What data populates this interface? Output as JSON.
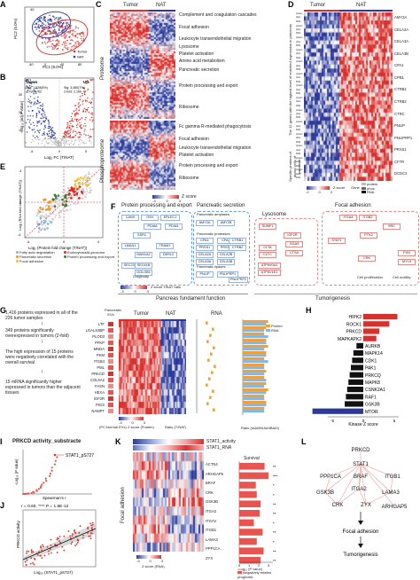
{
  "panels": {
    "A": {
      "label": "A",
      "xlabel": "PC1 (9.0%)",
      "ylabel": "PC2 (5.0%)",
      "legend": [
        "Tumor",
        "NAT"
      ],
      "xticks": [
        "-40",
        "0",
        "40",
        "80"
      ],
      "yticks": [
        "40",
        "0",
        "-40"
      ]
    },
    "B": {
      "label": "B",
      "xlabel": "Log₂ FC (T/NAT)",
      "ylabel": "-Log₁₀ (adj.P value)",
      "down_title": "Down",
      "up_title": "Up",
      "down_stats": [
        "Sig: 1,528(8%)",
        "2-fold: 762"
      ],
      "up_stats": [
        "Sig: 3,450(7%)",
        "2-fold: 2,160"
      ],
      "xticks": [
        "-5",
        "0",
        "5"
      ],
      "yticks": [
        "40",
        "30",
        "20",
        "10",
        "0"
      ]
    },
    "C": {
      "label": "C",
      "tumor": "Tumor",
      "nat": "NAT",
      "proteome": "Proteome",
      "phospho": "Phosphoproteome",
      "terms_top": [
        "Complement and coagulation cascades",
        "Focal adhesion",
        "Leukocyte transendothelial migration",
        "Lysosome",
        "Platelet activation",
        "Amino acid metabolism",
        "Pancreatic secretion",
        "Protein processing and export",
        "Ribosome"
      ],
      "terms_bottom": [
        "Fc gamma R-mediated phagocytosis",
        "Focal adhesion",
        "Leukocyte transendothelial migration",
        "Platelet activation",
        "Protein processing and export",
        "Ribosome"
      ],
      "zscore": "Z score",
      "zticks": [
        "-3",
        "0",
        "3"
      ]
    },
    "D": {
      "label": "D",
      "tumor": "Tumor",
      "nat": "NAT",
      "genes": [
        "AMY2A",
        "CELA2A",
        "CELA3A",
        "CELA3B",
        "CPA1",
        "CPB1",
        "CTRB1",
        "CTRB2",
        "CTRC",
        "PNLIP",
        "PNLIPRP1",
        "PRSS1",
        "CFTR",
        "DCDC2"
      ],
      "side1": "The 12 genes with the highest level of enriched expression in pancreas",
      "side2": "Specific proteins of ductal cells of pancreas",
      "rowtags": [
        "protein",
        "phos",
        "RNA"
      ],
      "zscore": "Z score",
      "zticks": [
        "-2",
        "0",
        "2"
      ],
      "gene_legend": "Gene",
      "gene_items": [
        "protein",
        "phos",
        "RNA"
      ]
    },
    "E": {
      "label": "E",
      "xlabel": "Log₂ (Protein fold change (T/NAT))",
      "ylabel": "Log₂ (RNA fold change (T/NAT))",
      "legend": [
        "Fatty acid degradation",
        "Endocytosis&Lysosome",
        "Pancreatic secretion",
        "Protein processing and export",
        "Focal adhesion"
      ],
      "legend_colors": [
        "#7fb7e8",
        "#e2281f",
        "#ff8c1a",
        "#3a7d3a",
        "#f5c318"
      ],
      "xticks": [
        "-4",
        "0",
        "4"
      ],
      "yticks": [
        "4",
        "0",
        "-4"
      ]
    },
    "F": {
      "label": "F",
      "title_ppe": "Protein processing and export",
      "title_ps": "Pancreatic secretion",
      "title_lys": "Lysosome",
      "title_fa": "Focal adhesion",
      "ppe_genes": [
        "CANX",
        "OS9",
        "ERLEC1",
        "PDIA6",
        "PDIA4",
        "SSR1",
        "LMAN1",
        "TRAM1",
        "MAN1A2",
        "DERL2",
        "SEC23B",
        "SEC61B",
        "GOLGB1"
      ],
      "ps_sub": [
        "Pancreatic amylases",
        "Pancreatic proteases",
        "Pancreatic lipases"
      ],
      "ps_genes": [
        "AMY2A",
        "AMY2B",
        "CPA1",
        "CPA2",
        "PRSS1",
        "PRSS2",
        "CELA2A",
        "CELA2B",
        "CELA3A",
        "CELA3B",
        "CTRB1",
        "CTRB2",
        "PNLIP",
        "PNLIPRP1",
        "PNLIPRP2"
      ],
      "lys_genes": [
        "SUMF1",
        "IGF2R",
        "CLTA",
        "CLTC",
        "GGA3",
        "CTSA",
        "ATP6V0A1",
        "ATP6V1E1"
      ],
      "fa_genes": [
        "ITGA4",
        "ITGB2",
        "SRC",
        "PTK2",
        "STAT1",
        "CRK",
        "PXN",
        "MYL9"
      ],
      "fa_labels": [
        "Cell proliferation",
        "Cell motility"
      ],
      "bottom_left": "Pancreas fundament function",
      "bottom_right": "Tumorigenesis",
      "zscore": "Z score",
      "zticks": [
        "-3",
        "0",
        "3"
      ],
      "ratio": "T/NAT ratio",
      "golgi": "Golgibody"
    },
    "G": {
      "label": "G",
      "flow": [
        "1,416 proteins  expressed in all of the 226 tumor samples",
        "349 proteins significantly overexpressed in tumors (2-fold)",
        "The high expression of 15 proteins were negatively correlated with the overall survival",
        "15 mRNA significantly higher expressed in tumors than the adjacent tissues"
      ],
      "genes": [
        "LTF",
        "LGALS3BP",
        "PLOD3",
        "PFKP",
        "MNDA",
        "PKM",
        "ITGB4",
        "PML",
        "PRKCD",
        "COL5A2",
        "FASN",
        "HEXA",
        "IGF2R",
        "PIGS",
        "NAMPT"
      ],
      "col_head": "Pancreatic EVs",
      "tumor": "Tumor",
      "nat": "NAT",
      "rna": "RNA",
      "legend_pc": "(PC:Normal EVs)",
      "legend_z": "Z score (Protein)",
      "legend_ratio": "Ratio (T/NAT)",
      "ratio_label": "Ratio (IA&IB/IIA&IIB&III)",
      "bar_legend": [
        "Protein",
        "RNA"
      ],
      "zticks": [
        "-3",
        "0",
        "3"
      ]
    },
    "H": {
      "label": "H",
      "xlabel": "Kinase Z score",
      "xticks": [
        "-5",
        "0",
        "5"
      ]
    },
    "I": {
      "label": "I",
      "title": "PRKCD activity_substracte",
      "annot": "STAT1_pS727",
      "ylabel": "-Log₁₀ (P value)",
      "xlabel": "Spearman's r",
      "yticks": [
        "1.5",
        "1.0",
        "0.5",
        "0"
      ]
    },
    "J": {
      "label": "J",
      "title": "r = 0.60, **** P = 1.5E-12",
      "xlabel": "Log₁₀ (STAT1_pS727)",
      "ylabel": "PRKCD activity"
    },
    "K": {
      "label": "K",
      "head1": "STAT1_activity",
      "head2": "STAT1_RNA",
      "survival": "Survival",
      "side": "Focal adhesion",
      "genes": [
        "ACTN4",
        "ARHGAP5",
        "BRAF",
        "CRK",
        "GSK3B",
        "ITGA2",
        "ITGAV",
        "ITGB1",
        "LAMA3",
        "PPP1CA",
        "ZYX"
      ],
      "sig": [
        "**",
        "***",
        "*",
        "*",
        "**",
        "**",
        "*",
        "**",
        "*",
        "**",
        "**"
      ],
      "zscore": "Z score (RNA)",
      "zticks": [
        "-3",
        "0",
        "3"
      ],
      "xlabel": "-Log₁₀ (P value)",
      "xticks": [
        "0",
        "1",
        "2",
        "3"
      ],
      "legend": "Negatively related prognosis"
    },
    "L": {
      "label": "L",
      "nodes": [
        "PRKCD",
        "STAT1",
        "PPP1CA",
        "BRAF",
        "ITGB1",
        "ITGA2",
        "GSK3B",
        "LAMA3",
        "CRK",
        "ZYX",
        "ARHGAP5"
      ],
      "out1": "Focal adhesion",
      "out2": "Tumorigenesis"
    }
  },
  "chart_data": [
    {
      "type": "bar",
      "title": "",
      "xlabel": "Kinase Z score",
      "categories": [
        "HIPK2",
        "ROCK1",
        "PRKCD",
        "MAPKAPK2",
        "AURKB",
        "MAPK14",
        "CDK1",
        "PAK1",
        "PRKCQ",
        "MAPK8",
        "CSNK2A1",
        "RAF1",
        "GSK3B",
        "MTOR"
      ],
      "values": [
        5.5,
        4.2,
        2.6,
        2.1,
        -1.1,
        -1.6,
        -1.8,
        -2.0,
        -2.2,
        -2.4,
        -2.6,
        -2.8,
        -3.0,
        -8.2
      ],
      "colors": [
        "#d8302c",
        "#d8302c",
        "#d8302c",
        "#d8302c",
        "#111111",
        "#111111",
        "#111111",
        "#111111",
        "#111111",
        "#111111",
        "#111111",
        "#111111",
        "#111111",
        "#2b3a9a"
      ]
    },
    {
      "type": "bar",
      "title": "",
      "xlabel": "-Log₁₀ (P value)",
      "categories": [
        "ACTN4",
        "ARHGAP5",
        "BRAF",
        "CRK",
        "GSK3B",
        "ITGA2",
        "ITGAV",
        "ITGB1",
        "LAMA3",
        "PPP1CA",
        "ZYX"
      ],
      "values": [
        2.6,
        3.0,
        1.7,
        1.8,
        2.2,
        2.1,
        1.5,
        2.4,
        1.8,
        2.5,
        2.2
      ]
    },
    {
      "type": "bar",
      "title": "",
      "xlabel": "Ratio (IA&IB/IIA&IIB&III)",
      "categories": [
        "LTF",
        "LGALS3BP",
        "PLOD3",
        "PFKP",
        "MNDA",
        "PKM",
        "ITGB4",
        "PML",
        "PRKCD",
        "COL5A2",
        "FASN",
        "HEXA",
        "IGF2R",
        "PIGS",
        "NAMPT"
      ],
      "series": [
        {
          "name": "Protein",
          "values": [
            1.3,
            1.2,
            1.1,
            1.2,
            1.3,
            1.2,
            1.1,
            1.1,
            1.2,
            1.1,
            1.2,
            1.3,
            1.1,
            1.2,
            1.1
          ]
        },
        {
          "name": "RNA",
          "values": [
            1.2,
            1.1,
            1.3,
            1.2,
            1.1,
            1.2,
            1.3,
            1.1,
            1.1,
            1.2,
            1.1,
            1.2,
            1.1,
            1.2,
            1.1
          ]
        }
      ]
    }
  ]
}
